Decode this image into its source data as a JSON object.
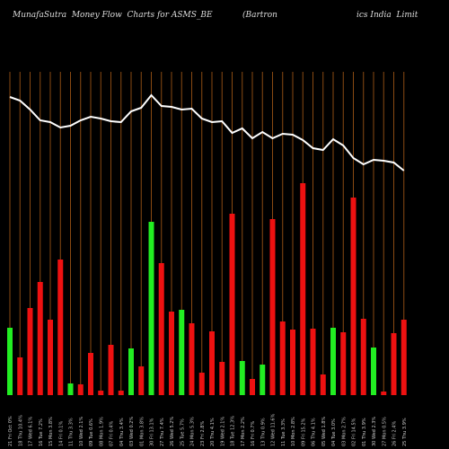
{
  "header": {
    "left": "MunafaSutra  Money Flow  Charts for ASMS_BE",
    "right_a": "(Bartron",
    "right_b": "ics India  Limit"
  },
  "colors": {
    "background": "#000000",
    "up_bar": "#22ee22",
    "down_bar": "#ee1111",
    "price_line": "#ffffff",
    "grid_line": "#8a4a12",
    "axis_text": "#cccccc"
  },
  "chart_data": {
    "type": "bar",
    "title": "MunafaSutra  Money Flow  Charts for ASMS_BE (Bartronics India  Limit",
    "xlabel": "",
    "ylabel": "",
    "grid": true,
    "x_labels": [
      "21 Fri Oct 0%",
      "18 Thu 10.4%",
      "17 Wed 6.1%",
      "16 Tue 7.2%",
      "15 Mon 3.8%",
      "14 Fri 0.1%",
      "11 Thu 3.3%",
      "10 Wed 2.1%",
      "09 Tue 0.6%",
      "08 Mon 1.9%",
      "07 Fri 0.4%",
      "04 Thu 3.4%",
      "03 Wed 0.2%",
      "01 Mon 3.8%",
      "30 Fri 13.1%",
      "27 Thu 7.4%",
      "26 Wed 5.2%",
      "25 Tue 5.7%",
      "24 Mon 5.3%",
      "23 Fri 2.8%",
      "20 Thu 4.1%",
      "19 Wed 2.1%",
      "18 Tue 12.3%",
      "17 Mon 2.2%",
      "16 Fri 0.7%",
      "13 Thu 0.9%",
      "12 Wed 11.6%",
      "11 Tue 3.3%",
      "10 Mon 2.8%",
      "09 Fri 15.2%",
      "06 Thu 4.1%",
      "05 Wed 1.8%",
      "04 Tue 3.0%",
      "03 Mon 2.7%",
      "02 Fri 14.5%",
      "01 Thu 3.9%",
      "30 Wed 2.3%",
      "27 Mon 0.5%",
      "26 Fri 2.4%",
      "25 Thu 3.9%"
    ],
    "bars": [
      {
        "value": 75,
        "dir": "up"
      },
      {
        "value": 42,
        "dir": "down"
      },
      {
        "value": 97,
        "dir": "down"
      },
      {
        "value": 126,
        "dir": "down"
      },
      {
        "value": 84,
        "dir": "down"
      },
      {
        "value": 151,
        "dir": "down"
      },
      {
        "value": 13,
        "dir": "up"
      },
      {
        "value": 12,
        "dir": "down"
      },
      {
        "value": 47,
        "dir": "down"
      },
      {
        "value": 5,
        "dir": "down"
      },
      {
        "value": 56,
        "dir": "down"
      },
      {
        "value": 5,
        "dir": "down"
      },
      {
        "value": 52,
        "dir": "up"
      },
      {
        "value": 32,
        "dir": "down"
      },
      {
        "value": 193,
        "dir": "up"
      },
      {
        "value": 147,
        "dir": "down"
      },
      {
        "value": 93,
        "dir": "down"
      },
      {
        "value": 95,
        "dir": "up"
      },
      {
        "value": 80,
        "dir": "down"
      },
      {
        "value": 25,
        "dir": "down"
      },
      {
        "value": 71,
        "dir": "down"
      },
      {
        "value": 37,
        "dir": "down"
      },
      {
        "value": 202,
        "dir": "down"
      },
      {
        "value": 38,
        "dir": "up"
      },
      {
        "value": 18,
        "dir": "down"
      },
      {
        "value": 34,
        "dir": "up"
      },
      {
        "value": 196,
        "dir": "down"
      },
      {
        "value": 82,
        "dir": "down"
      },
      {
        "value": 73,
        "dir": "down"
      },
      {
        "value": 236,
        "dir": "down"
      },
      {
        "value": 74,
        "dir": "down"
      },
      {
        "value": 23,
        "dir": "down"
      },
      {
        "value": 75,
        "dir": "up"
      },
      {
        "value": 70,
        "dir": "down"
      },
      {
        "value": 220,
        "dir": "down"
      },
      {
        "value": 85,
        "dir": "down"
      },
      {
        "value": 53,
        "dir": "up"
      },
      {
        "value": 4,
        "dir": "down"
      },
      {
        "value": 69,
        "dir": "down"
      },
      {
        "value": 84,
        "dir": "down"
      }
    ],
    "price_line": [
      108,
      112,
      122,
      134,
      136,
      142,
      140,
      134,
      130,
      132,
      135,
      136,
      124,
      120,
      106,
      118,
      119,
      122,
      121,
      132,
      136,
      135,
      148,
      143,
      154,
      147,
      154,
      149,
      150,
      156,
      165,
      167,
      155,
      162,
      176,
      183,
      178,
      179,
      181,
      190
    ]
  }
}
